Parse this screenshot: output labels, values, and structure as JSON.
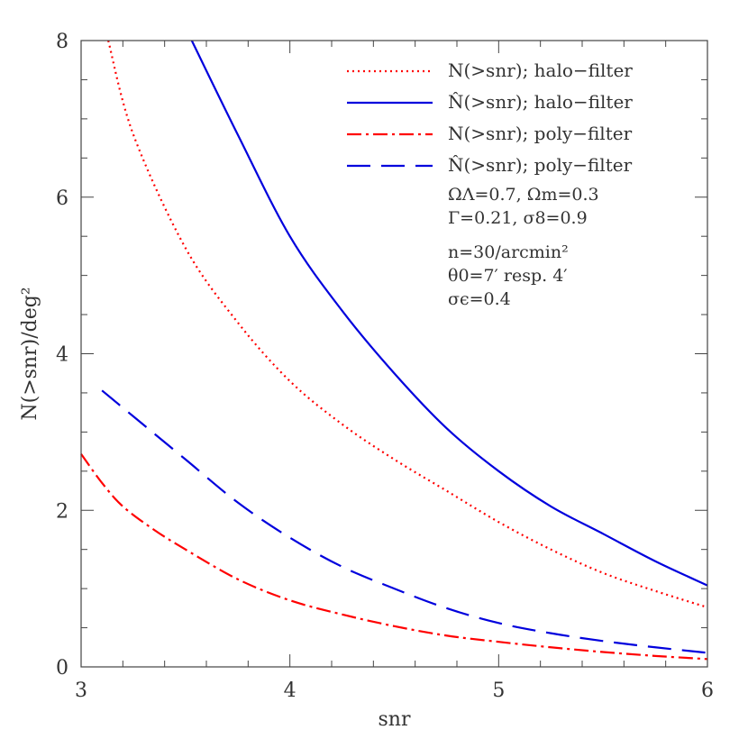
{
  "chart_data": {
    "type": "line",
    "title": "",
    "xlabel": "snr",
    "ylabel": "N(>snr)/deg²",
    "xlim": [
      3,
      6
    ],
    "ylim": [
      0,
      8
    ],
    "x_ticks": [
      3,
      4,
      5,
      6
    ],
    "x_tick_labels": [
      "3",
      "4",
      "5",
      "6"
    ],
    "y_ticks": [
      0,
      2,
      4,
      6,
      8
    ],
    "y_tick_labels": [
      "0",
      "2",
      "4",
      "6",
      "8"
    ],
    "legend_position": "top-right",
    "series": [
      {
        "name": "N(>snr); halo−filter",
        "color": "#ff0000",
        "style": "dotted",
        "x": [
          3.13,
          3.25,
          3.5,
          3.75,
          4.0,
          4.25,
          4.5,
          4.75,
          5.0,
          5.25,
          5.5,
          5.75,
          6.0
        ],
        "y": [
          8.0,
          6.8,
          5.35,
          4.4,
          3.65,
          3.1,
          2.65,
          2.25,
          1.85,
          1.5,
          1.2,
          0.97,
          0.76
        ]
      },
      {
        "name": "N̂(>snr); halo−filter",
        "color": "#0000dd",
        "style": "solid",
        "x": [
          3.53,
          3.75,
          4.0,
          4.25,
          4.5,
          4.75,
          5.0,
          5.25,
          5.5,
          5.75,
          6.0
        ],
        "y": [
          8.0,
          6.8,
          5.5,
          4.55,
          3.75,
          3.05,
          2.5,
          2.05,
          1.7,
          1.35,
          1.04
        ]
      },
      {
        "name": "N(>snr); poly−filter",
        "color": "#ff0000",
        "style": "dashdot",
        "x": [
          3.0,
          3.1,
          3.2,
          3.35,
          3.5,
          3.75,
          4.0,
          4.25,
          4.5,
          4.75,
          5.0,
          5.25,
          5.5,
          5.75,
          6.0
        ],
        "y": [
          2.72,
          2.35,
          2.05,
          1.75,
          1.5,
          1.12,
          0.85,
          0.67,
          0.52,
          0.4,
          0.32,
          0.25,
          0.19,
          0.14,
          0.1
        ]
      },
      {
        "name": "N̂(>snr); poly−filter",
        "color": "#0000dd",
        "style": "dashed",
        "x": [
          3.1,
          3.25,
          3.5,
          3.75,
          4.0,
          4.25,
          4.5,
          4.75,
          5.0,
          5.25,
          5.5,
          5.75,
          6.0
        ],
        "y": [
          3.53,
          3.2,
          2.65,
          2.1,
          1.65,
          1.28,
          1.0,
          0.75,
          0.56,
          0.43,
          0.33,
          0.25,
          0.18
        ]
      }
    ]
  },
  "params": {
    "line1": "ΩΛ=0.7, Ωm=0.3",
    "line2": "Γ=0.21, σ8=0.9",
    "line3": "n=30/arcmin²",
    "line4": "θ0=7′ resp. 4′",
    "line5": "σϵ=0.4"
  }
}
